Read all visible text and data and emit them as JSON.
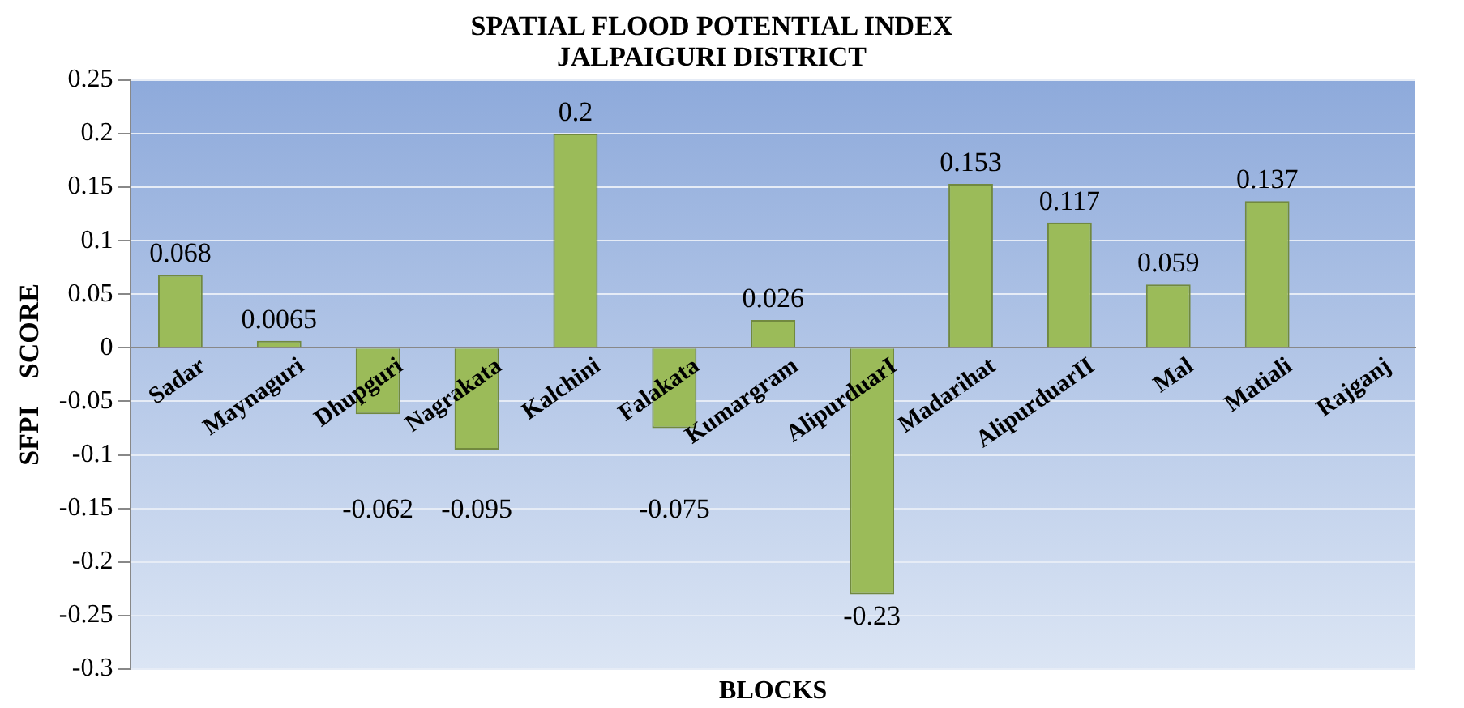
{
  "chart_data": {
    "type": "bar",
    "title": "SPATIAL FLOOD POTENTIAL INDEX\nJALPAIGURI DISTRICT",
    "xlabel": "BLOCKS",
    "ylabel": "SFPI    SCORE",
    "categories": [
      "Sadar",
      "Maynaguri",
      "Dhupguri",
      "Nagrakata",
      "Kalchini",
      "Falakata",
      "Kumargram",
      "AlipurduarI",
      "Madarihat",
      "AlipurduarII",
      "Mal",
      "Matiali",
      "Rajganj"
    ],
    "values": [
      0.068,
      0.0065,
      -0.062,
      -0.095,
      0.2,
      -0.075,
      0.026,
      -0.23,
      0.153,
      0.117,
      0.059,
      0.137,
      null
    ],
    "color": "#9bbb59",
    "ylim": [
      -0.3,
      0.25
    ],
    "yticks": [
      -0.3,
      -0.25,
      -0.2,
      -0.15,
      -0.1,
      -0.05,
      0,
      0.05,
      0.1,
      0.15,
      0.2,
      0.25
    ],
    "grid": "y",
    "data_labels": true
  }
}
